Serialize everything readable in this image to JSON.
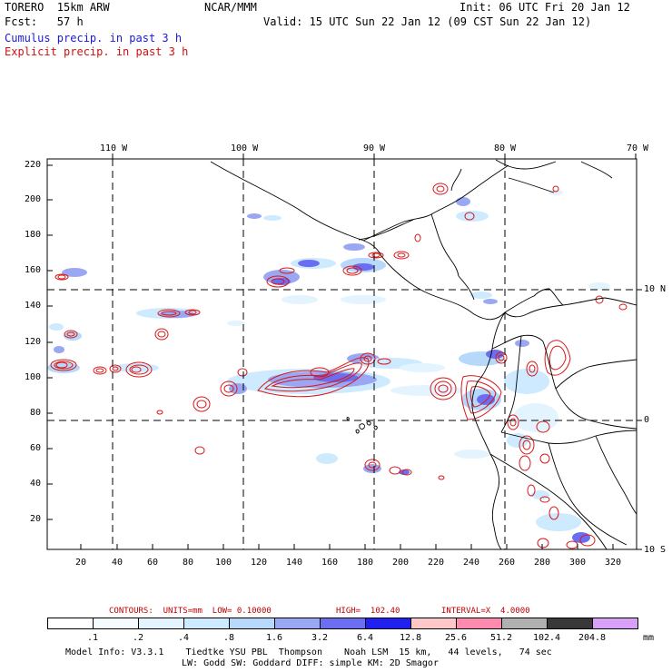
{
  "header": {
    "model": "TORERO  15km ARW",
    "org": "NCAR/MMM",
    "init": "Init: 06 UTC Fri 20 Jan 12",
    "fcst": "Fcst:   57 h",
    "valid": "Valid: 15 UTC Sun 22 Jan 12 (09 CST Sun 22 Jan 12)",
    "legend_cumulus": "Cumulus precip. in past 3 h",
    "legend_explicit": "Explicit precip. in past 3 h"
  },
  "axes": {
    "top_lon_labels": [
      "110 W",
      "100 W",
      "90 W",
      "80 W",
      "70 W"
    ],
    "right_lat_labels": [
      "10 N",
      "0",
      "10 S"
    ],
    "left_grid_labels": [
      "220",
      "200",
      "180",
      "160",
      "140",
      "120",
      "100",
      "80",
      "60",
      "40",
      "20"
    ],
    "bottom_grid_labels": [
      "20",
      "40",
      "60",
      "80",
      "100",
      "120",
      "140",
      "160",
      "180",
      "200",
      "220",
      "240",
      "260",
      "280",
      "300",
      "320"
    ]
  },
  "contour_caption": {
    "contours": "CONTOURS:  UNITS=mm  LOW= 0.10000",
    "high": "HIGH=  102.40",
    "interval": "INTERVAL=X  4.0000"
  },
  "colorbar": {
    "unit": "mm",
    "labels": [
      ".1",
      ".2",
      ".4",
      ".8",
      "1.6",
      "3.2",
      "6.4",
      "12.8",
      "25.6",
      "51.2",
      "102.4",
      "204.8"
    ],
    "colors": [
      "#ffffff",
      "#f3fbff",
      "#e3f4ff",
      "#cdeaff",
      "#b5d8fb",
      "#9aa8f3",
      "#6b6ef0",
      "#2020f0",
      "#ffc8c8",
      "#ff8ab0",
      "#b0b0b0",
      "#383838",
      "#d8a0f8"
    ]
  },
  "footer": {
    "line1": "Model Info: V3.3.1    Tiedtke YSU PBL  Thompson    Noah LSM  15 km,   44 levels,   74 sec",
    "line2": "LW: Godd SW: Goddard DIFF: simple KM: 2D Smagor"
  }
}
